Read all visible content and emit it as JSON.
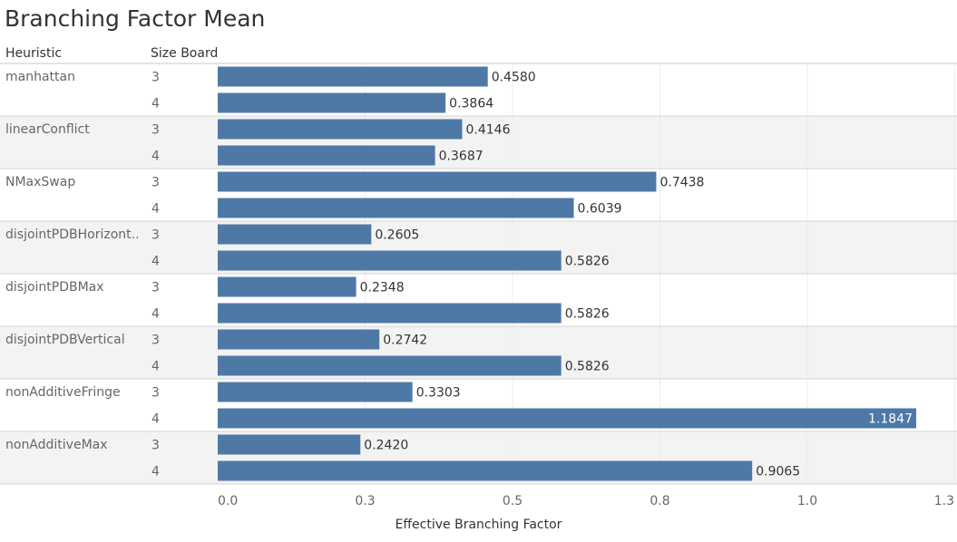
{
  "title": "Branching Factor Mean",
  "headers": {
    "heuristic": "Heuristic",
    "size": "Size Board"
  },
  "chart_data": {
    "type": "bar",
    "orientation": "horizontal",
    "title": "Branching Factor Mean",
    "xlabel": "Effective Branching Factor",
    "xlim": [
      0,
      1.3
    ],
    "xticks": [
      "0.0",
      "0.3",
      "0.5",
      "0.8",
      "1.0",
      "1.3"
    ],
    "xtick_values": [
      0.0,
      0.25,
      0.5,
      0.75,
      1.0,
      1.25
    ],
    "grid": true,
    "bar_color": "#4e79a7",
    "groups": [
      {
        "heuristic": "manhattan",
        "bars": [
          {
            "size": "3",
            "value": 0.458,
            "label": "0.4580"
          },
          {
            "size": "4",
            "value": 0.3864,
            "label": "0.3864"
          }
        ]
      },
      {
        "heuristic": "linearConflict",
        "bars": [
          {
            "size": "3",
            "value": 0.4146,
            "label": "0.4146"
          },
          {
            "size": "4",
            "value": 0.3687,
            "label": "0.3687"
          }
        ]
      },
      {
        "heuristic": "NMaxSwap",
        "bars": [
          {
            "size": "3",
            "value": 0.7438,
            "label": "0.7438"
          },
          {
            "size": "4",
            "value": 0.6039,
            "label": "0.6039"
          }
        ]
      },
      {
        "heuristic": "disjointPDBHorizont..",
        "bars": [
          {
            "size": "3",
            "value": 0.2605,
            "label": "0.2605"
          },
          {
            "size": "4",
            "value": 0.5826,
            "label": "0.5826"
          }
        ]
      },
      {
        "heuristic": "disjointPDBMax",
        "bars": [
          {
            "size": "3",
            "value": 0.2348,
            "label": "0.2348"
          },
          {
            "size": "4",
            "value": 0.5826,
            "label": "0.5826"
          }
        ]
      },
      {
        "heuristic": "disjointPDBVertical",
        "bars": [
          {
            "size": "3",
            "value": 0.2742,
            "label": "0.2742"
          },
          {
            "size": "4",
            "value": 0.5826,
            "label": "0.5826"
          }
        ]
      },
      {
        "heuristic": "nonAdditiveFringe",
        "bars": [
          {
            "size": "3",
            "value": 0.3303,
            "label": "0.3303"
          },
          {
            "size": "4",
            "value": 1.1847,
            "label": "1.1847"
          }
        ]
      },
      {
        "heuristic": "nonAdditiveMax",
        "bars": [
          {
            "size": "3",
            "value": 0.242,
            "label": "0.2420"
          },
          {
            "size": "4",
            "value": 0.9065,
            "label": "0.9065"
          }
        ]
      }
    ]
  }
}
